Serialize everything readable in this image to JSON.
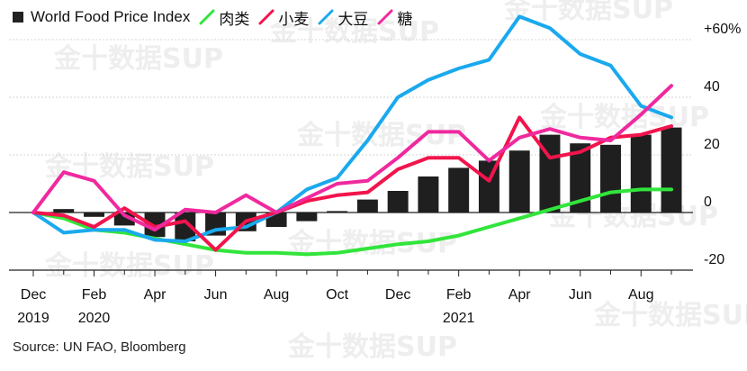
{
  "legend": [
    {
      "name": "World Food Price Index",
      "kind": "bar",
      "color": "#1f1f1f"
    },
    {
      "name": "肉类",
      "kind": "line",
      "color": "#31e53a"
    },
    {
      "name": "小麦",
      "kind": "line",
      "color": "#f2144c"
    },
    {
      "name": "大豆",
      "kind": "line",
      "color": "#1aa9ee"
    },
    {
      "name": "糖",
      "kind": "line",
      "color": "#f0299e"
    }
  ],
  "source": "Source: UN FAO, Bloomberg",
  "watermark": "金十数据SUP",
  "chart_data": {
    "type": "bar",
    "x": [
      "Dec 2019",
      "Jan 2020",
      "Feb 2020",
      "Mar 2020",
      "Apr 2020",
      "May 2020",
      "Jun 2020",
      "Jul 2020",
      "Aug 2020",
      "Sep 2020",
      "Oct 2020",
      "Nov 2020",
      "Dec 2020",
      "Jan 2021",
      "Feb 2021",
      "Mar 2021",
      "Apr 2021",
      "May 2021",
      "Jun 2021",
      "Jul 2021",
      "Aug 2021",
      "Sep 2021"
    ],
    "x_tick_labels": [
      {
        "index": 0,
        "label": "Dec",
        "year": "2019"
      },
      {
        "index": 2,
        "label": "Feb",
        "year": "2020"
      },
      {
        "index": 4,
        "label": "Apr",
        "year": ""
      },
      {
        "index": 6,
        "label": "Jun",
        "year": ""
      },
      {
        "index": 8,
        "label": "Aug",
        "year": ""
      },
      {
        "index": 10,
        "label": "Oct",
        "year": ""
      },
      {
        "index": 12,
        "label": "Dec",
        "year": ""
      },
      {
        "index": 14,
        "label": "Feb",
        "year": "2021"
      },
      {
        "index": 16,
        "label": "Apr",
        "year": ""
      },
      {
        "index": 18,
        "label": "Jun",
        "year": ""
      },
      {
        "index": 20,
        "label": "Aug",
        "year": ""
      }
    ],
    "y_ticks": [
      60,
      40,
      20,
      0,
      -20
    ],
    "y_tick_labels": [
      "+60%",
      "40",
      "20",
      "0",
      "-20"
    ],
    "ylim": [
      -20,
      60
    ],
    "grid": true,
    "legend_position": "top-left",
    "series": [
      {
        "name": "World Food Price Index",
        "type": "bar",
        "color": "#1f1f1f",
        "values": [
          0,
          1.2,
          -1.5,
          -4.5,
          -8.5,
          -10,
          -8,
          -6.5,
          -5,
          -3,
          0.5,
          4.5,
          7.5,
          12.5,
          15.5,
          18,
          21.5,
          27,
          24,
          23.5,
          27,
          29.5
        ]
      },
      {
        "name": "肉类",
        "type": "line",
        "color": "#31e53a",
        "values": [
          0,
          -2,
          -6,
          -7,
          -9,
          -11,
          -13,
          -14,
          -14,
          -14.5,
          -14,
          -12.5,
          -11,
          -10,
          -8,
          -5,
          -2,
          1,
          4,
          7,
          8,
          8
        ]
      },
      {
        "name": "小麦",
        "type": "line",
        "color": "#f2144c",
        "values": [
          0,
          -1,
          -5,
          1.5,
          -5,
          -3,
          -13,
          -3,
          0,
          4,
          6,
          7,
          15,
          19,
          19,
          11,
          33,
          19,
          21,
          26,
          27,
          30
        ]
      },
      {
        "name": "大豆",
        "type": "line",
        "color": "#1aa9ee",
        "values": [
          0,
          -7,
          -6,
          -6,
          -9.5,
          -10,
          -6,
          -5,
          0,
          8,
          12,
          25,
          40,
          46,
          50,
          53,
          68,
          64,
          55,
          51,
          37,
          33
        ]
      },
      {
        "name": "糖",
        "type": "line",
        "color": "#f0299e",
        "values": [
          0,
          14,
          11,
          -1,
          -6,
          1,
          0,
          6,
          0,
          5,
          10,
          11,
          19,
          28,
          28,
          18,
          26,
          29,
          26,
          25,
          34,
          44
        ]
      }
    ]
  }
}
